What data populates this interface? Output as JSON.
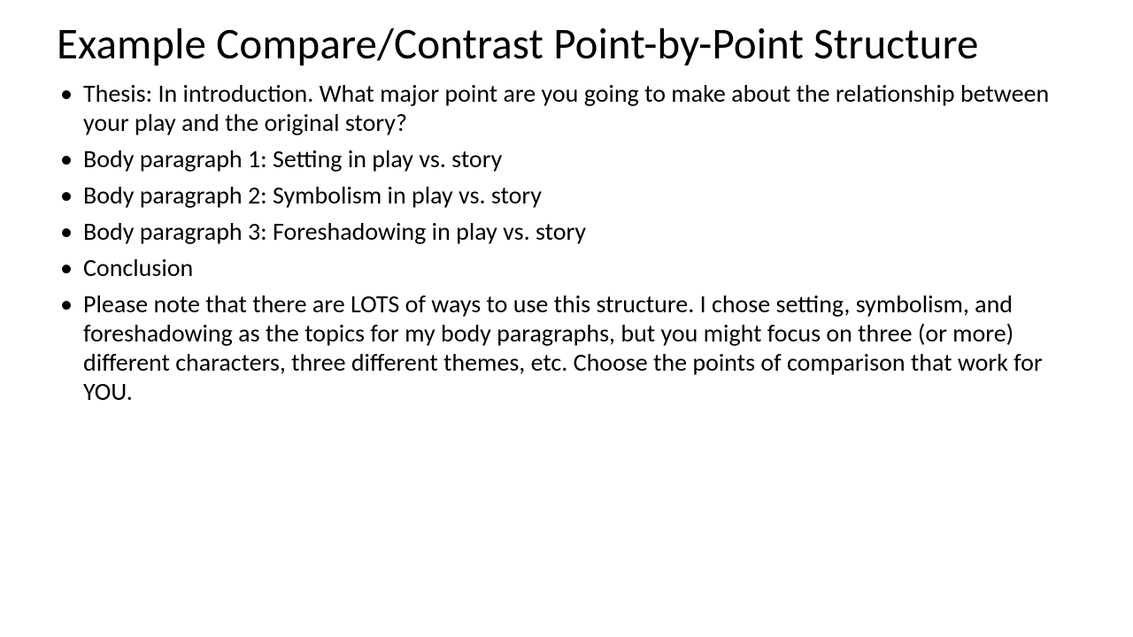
{
  "slide": {
    "title": "Example Compare/Contrast Point-by-Point Structure",
    "bullets": [
      "Thesis: In introduction.  What major point are you going to make about the relationship between your play and the original story?",
      "Body paragraph 1: Setting in play vs. story",
      "Body paragraph 2: Symbolism in play vs. story",
      "Body paragraph 3: Foreshadowing in play vs. story",
      "Conclusion",
      "Please note that there are LOTS of ways to use this structure.  I chose setting, symbolism, and foreshadowing as the topics for my body paragraphs, but you might focus on three (or more) different characters, three different themes, etc.  Choose the points of comparison that work for YOU."
    ],
    "colors": {
      "background": "#ffffff",
      "text": "#000000",
      "bullet": "#000000"
    },
    "typography": {
      "title_fontsize": 49,
      "body_fontsize": 28,
      "font_family": "Calibri"
    }
  }
}
